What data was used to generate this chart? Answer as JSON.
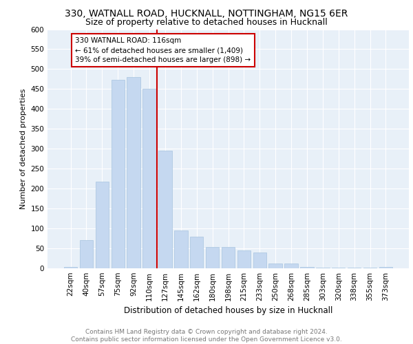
{
  "title1": "330, WATNALL ROAD, HUCKNALL, NOTTINGHAM, NG15 6ER",
  "title2": "Size of property relative to detached houses in Hucknall",
  "xlabel": "Distribution of detached houses by size in Hucknall",
  "ylabel": "Number of detached properties",
  "categories": [
    "22sqm",
    "40sqm",
    "57sqm",
    "75sqm",
    "92sqm",
    "110sqm",
    "127sqm",
    "145sqm",
    "162sqm",
    "180sqm",
    "198sqm",
    "215sqm",
    "233sqm",
    "250sqm",
    "268sqm",
    "285sqm",
    "303sqm",
    "320sqm",
    "338sqm",
    "355sqm",
    "373sqm"
  ],
  "values": [
    3,
    70,
    218,
    473,
    480,
    450,
    295,
    95,
    80,
    53,
    53,
    45,
    40,
    12,
    12,
    3,
    2,
    1,
    1,
    1,
    3
  ],
  "bar_color": "#c5d8f0",
  "bar_edge_color": "#a8c4e0",
  "vline_x": 5.5,
  "vline_color": "#cc0000",
  "annotation_text": "330 WATNALL ROAD: 116sqm\n← 61% of detached houses are smaller (1,409)\n39% of semi-detached houses are larger (898) →",
  "annotation_box_color": "#ffffff",
  "annotation_box_edge_color": "#cc0000",
  "ylim": [
    0,
    600
  ],
  "yticks": [
    0,
    50,
    100,
    150,
    200,
    250,
    300,
    350,
    400,
    450,
    500,
    550,
    600
  ],
  "bg_color": "#e8f0f8",
  "grid_color": "#ffffff",
  "footer_text": "Contains HM Land Registry data © Crown copyright and database right 2024.\nContains public sector information licensed under the Open Government Licence v3.0.",
  "title1_fontsize": 10,
  "title2_fontsize": 9,
  "xlabel_fontsize": 8.5,
  "ylabel_fontsize": 8,
  "tick_fontsize": 7.5,
  "annotation_fontsize": 7.5,
  "footer_fontsize": 6.5
}
